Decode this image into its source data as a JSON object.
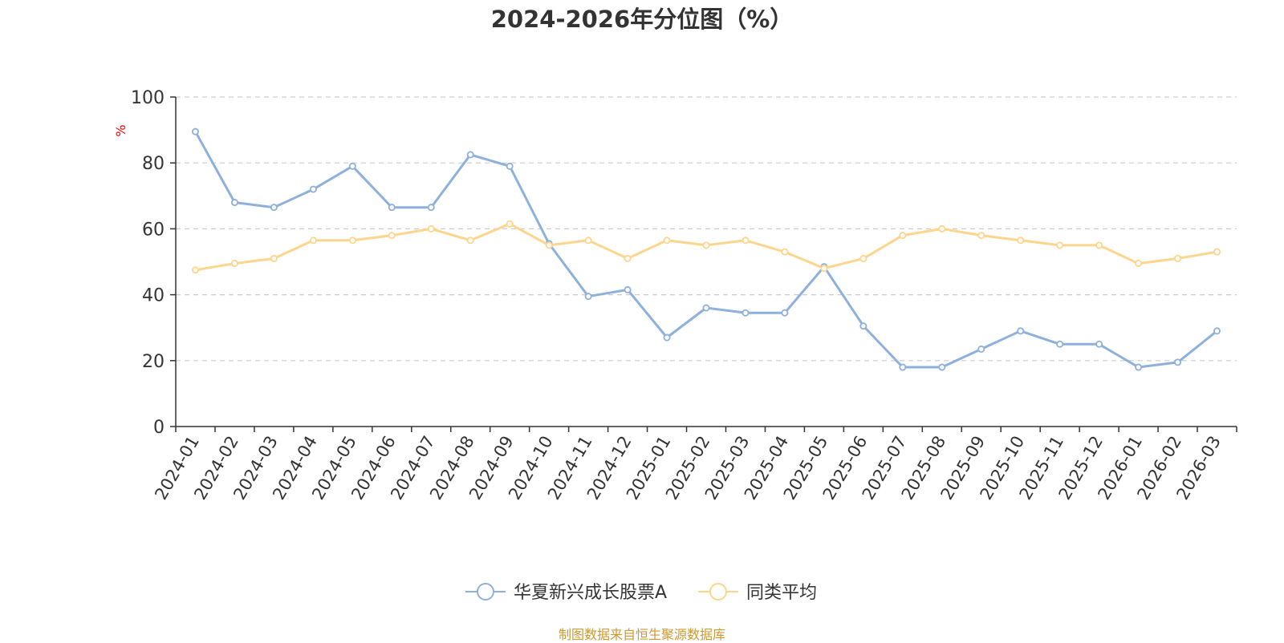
{
  "chart_data": {
    "type": "line",
    "title": "2024-2026年分位图（%）",
    "ylabel": "%",
    "ylim": [
      0,
      100
    ],
    "yticks": [
      0,
      20,
      40,
      60,
      80,
      100
    ],
    "grid": "horizontal-dashed",
    "legend_position": "bottom-center",
    "categories": [
      "2024-01",
      "2024-02",
      "2024-03",
      "2024-04",
      "2024-05",
      "2024-06",
      "2024-07",
      "2024-08",
      "2024-09",
      "2024-10",
      "2024-11",
      "2024-12",
      "2025-01",
      "2025-02",
      "2025-03",
      "2025-04",
      "2025-05",
      "2025-06",
      "2025-07",
      "2025-08",
      "2025-09",
      "2025-10",
      "2025-11",
      "2025-12",
      "2026-01",
      "2026-02",
      "2026-03"
    ],
    "series": [
      {
        "name": "华夏新兴成长股票A",
        "color": "#8eb0da",
        "values": [
          89.5,
          68,
          66.5,
          72,
          79,
          66.5,
          66.5,
          82.5,
          79,
          55.5,
          39.5,
          41.5,
          27,
          36,
          34.5,
          34.5,
          48.5,
          30.5,
          18,
          18,
          23.5,
          29,
          25,
          25,
          18,
          19.5,
          29
        ]
      },
      {
        "name": "同类平均",
        "color": "#fdd58c",
        "values": [
          47.5,
          49.5,
          51,
          56.5,
          56.5,
          58,
          60,
          56.5,
          61.5,
          55,
          56.5,
          51,
          56.5,
          55,
          56.5,
          53,
          48,
          51,
          58,
          60,
          58,
          56.5,
          55,
          55,
          49.5,
          51,
          53
        ]
      }
    ]
  },
  "source_note": "制图数据来自恒生聚源数据库"
}
